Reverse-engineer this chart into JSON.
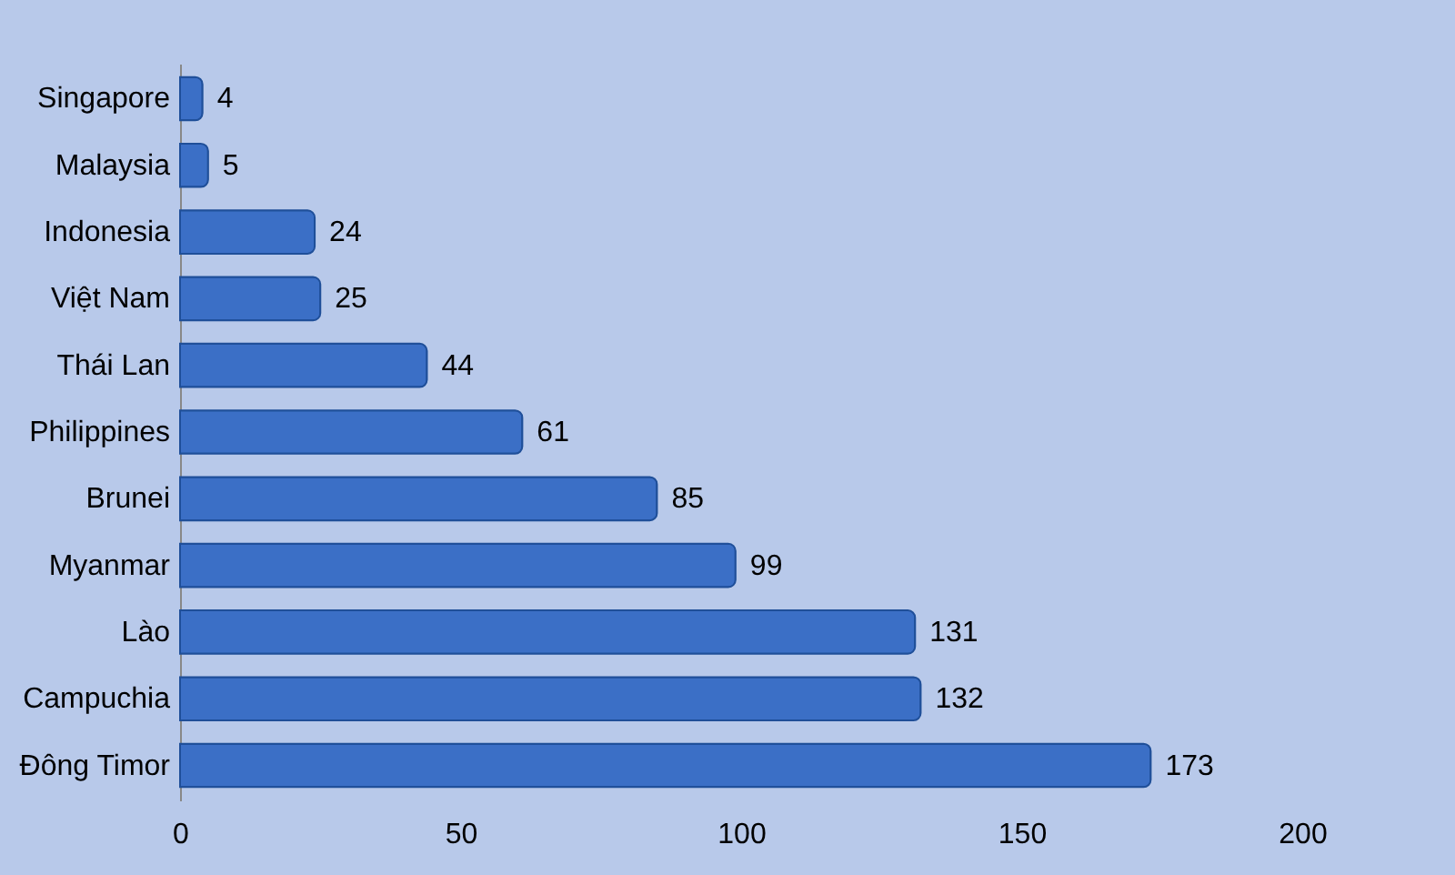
{
  "chart_data": {
    "type": "bar",
    "orientation": "horizontal",
    "categories": [
      "Singapore",
      "Malaysia",
      "Indonesia",
      "Việt Nam",
      "Thái Lan",
      "Philippines",
      "Brunei",
      "Myanmar",
      "Lào",
      "Campuchia",
      "Đông Timor"
    ],
    "values": [
      4,
      5,
      24,
      25,
      44,
      61,
      85,
      99,
      131,
      132,
      173
    ],
    "color": "#3b6fc6",
    "xlim": [
      0,
      200
    ],
    "xticks": [
      0,
      50,
      100,
      150,
      200
    ],
    "grid": false,
    "data_labels": true
  }
}
